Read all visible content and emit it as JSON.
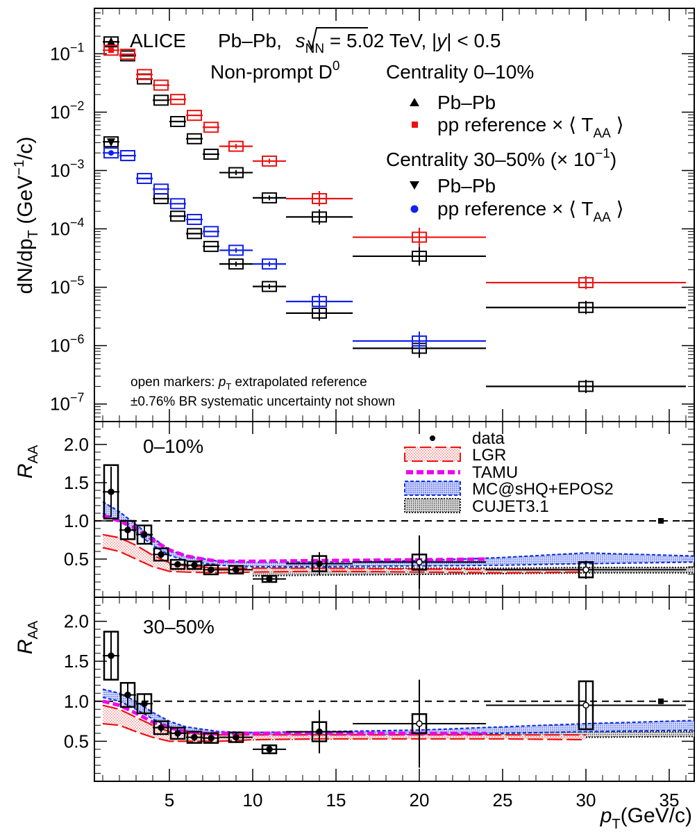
{
  "colors": {
    "central_pbpb": "#000000",
    "central_pp": "#ee1111",
    "semi_pbpb": "#000000",
    "semi_pp": "#1122ee",
    "lgr": "#ee1111",
    "tamu": "#ee00ee",
    "mcshq": "#1133dd",
    "cujet": "#222222"
  },
  "header": {
    "alice": "ALICE",
    "system": "Pb–Pb, ",
    "sqrt_s": "s",
    "sqrt_sub": "NN",
    "energy": " = 5.02 TeV, |",
    "y_sym": "y",
    "rapidity": "| < 0.5",
    "species_a": "Non-prompt D",
    "species_sup": "0"
  },
  "legend_top": {
    "cent1_title": "Centrality 0–10%",
    "cent1_pbpb": "Pb–Pb",
    "cent1_pp": "pp reference × ⟨ T",
    "cent1_pp_sub": "AA",
    "cent1_pp_end": " ⟩",
    "cent2_title": "Centrality 30–50% (× 10",
    "cent2_title_sup": "−1",
    "cent2_title_end": ")",
    "cent2_pbpb": "Pb–Pb",
    "cent2_pp": "pp reference × ⟨ T",
    "cent2_pp_sub": "AA",
    "cent2_pp_end": " ⟩"
  },
  "notes": {
    "line1_a": "open markers: ",
    "line1_p": "p",
    "line1_sub": "T",
    "line1_b": " extrapolated reference",
    "line2": "±0.76% BR systematic uncertainty not shown"
  },
  "top_ylabel": {
    "a": "dN/dp",
    "sub": "T",
    "b": " (GeV",
    "sup": "−1",
    "c": "/c)"
  },
  "raa_ylabel": {
    "main": "R",
    "sub": "AA"
  },
  "xlabel": {
    "main": "p",
    "sub": "T",
    "rest": "(GeV/c)"
  },
  "panel_mid": {
    "label": "0–10%"
  },
  "panel_bot": {
    "label": "30–50%"
  },
  "legend_raa": {
    "data": "data",
    "lgr": "LGR",
    "tamu": "TAMU",
    "mcshq": "MC@sHQ+EPOS2",
    "cujet": "CUJET3.1"
  },
  "chart_data": [
    {
      "type": "scatter",
      "panel": "spectra",
      "y_scale": "log",
      "xlim": [
        0.5,
        36.5
      ],
      "ylim": [
        5e-08,
        0.6
      ],
      "y_ticks": [
        "10^{-1}",
        "10^{-2}",
        "10^{-3}",
        "10^{-4}",
        "10^{-5}",
        "10^{-6}",
        "10^{-7}"
      ],
      "x_bin_edges": [
        1,
        2,
        3,
        4,
        5,
        6,
        7,
        8,
        10,
        12,
        16,
        24,
        36
      ],
      "x_centers": [
        1.5,
        2.5,
        3.5,
        4.5,
        5.5,
        6.5,
        7.5,
        9,
        11,
        14,
        20,
        30
      ],
      "series": [
        {
          "name": "Centrality 0–10% Pb–Pb",
          "marker": "triangle-up",
          "values": [
            0.16,
            0.092,
            0.037,
            0.016,
            0.0069,
            0.0035,
            0.0019,
            0.00092,
            0.00034,
            0.00016,
            3.4e-05,
            4.5e-06
          ]
        },
        {
          "name": "Centrality 0–10% pp reference × ⟨TAA⟩",
          "marker": "square",
          "values": [
            0.115,
            0.098,
            0.044,
            0.029,
            0.0165,
            0.0088,
            0.0055,
            0.0026,
            0.00145,
            0.00033,
            7.2e-05,
            1.2e-05
          ]
        },
        {
          "name": "Centrality 30–50% Pb–Pb",
          "marker": "triangle-down",
          "values": [
            0.0031,
            0.0018,
            0.00073,
            0.00033,
            0.000165,
            8.3e-05,
            5e-05,
            2.5e-05,
            1.03e-05,
            3.6e-06,
            9e-07,
            2e-07
          ]
        },
        {
          "name": "Centrality 30–50% pp reference × ⟨TAA⟩",
          "marker": "circle",
          "values": [
            0.002,
            0.0018,
            0.00073,
            0.00048,
            0.00027,
            0.000145,
            9e-05,
            4.3e-05,
            2.5e-05,
            5.7e-06,
            1.2e-06,
            null
          ]
        }
      ],
      "stat_err_rel": [
        0.08,
        0.08,
        0.08,
        0.06,
        0.06,
        0.06,
        0.08,
        0.1,
        0.1,
        0.35,
        0.45,
        0.3
      ]
    },
    {
      "type": "scatter",
      "panel": "raa_0_10",
      "label": "0–10%",
      "xlim": [
        0.5,
        36.5
      ],
      "ylim": [
        0,
        2.3
      ],
      "y_ticks": [
        0.5,
        1.0,
        1.5,
        2.0
      ],
      "x_ticks": [
        5,
        10,
        15,
        20,
        25,
        30,
        35
      ],
      "data": {
        "x": [
          1.5,
          2.5,
          3.5,
          4.5,
          5.5,
          6.5,
          7.5,
          9,
          11,
          14,
          20,
          30
        ],
        "xerr": [
          0.5,
          0.5,
          0.5,
          0.5,
          0.5,
          0.5,
          0.5,
          1,
          1,
          2,
          4,
          6
        ],
        "y": [
          1.38,
          0.88,
          0.82,
          0.56,
          0.43,
          0.42,
          0.36,
          0.36,
          0.24,
          0.44,
          0.46,
          0.36
        ],
        "stat": [
          0.33,
          0.12,
          0.12,
          0.05,
          0.04,
          0.04,
          0.04,
          0.04,
          0.03,
          0.15,
          0.35,
          0.12
        ],
        "syst": [
          0.35,
          0.12,
          0.12,
          0.08,
          0.06,
          0.05,
          0.06,
          0.05,
          0.04,
          0.1,
          0.1,
          0.1
        ]
      },
      "models": {
        "lgr_band": {
          "x": [
            1,
            2,
            3,
            4,
            5,
            6,
            8,
            10,
            14,
            20,
            25,
            30
          ],
          "lo": [
            0.65,
            0.6,
            0.5,
            0.4,
            0.34,
            0.33,
            0.32,
            0.33,
            0.34,
            0.33,
            0.32,
            0.33
          ],
          "hi": [
            0.82,
            0.78,
            0.68,
            0.55,
            0.45,
            0.41,
            0.38,
            0.38,
            0.38,
            0.37,
            0.36,
            0.36
          ]
        },
        "tamu": {
          "x": [
            1,
            2,
            3,
            4,
            5,
            6,
            7,
            8,
            10,
            14,
            20,
            24
          ],
          "y": [
            1.07,
            1.0,
            0.9,
            0.75,
            0.62,
            0.54,
            0.5,
            0.47,
            0.47,
            0.48,
            0.49,
            0.5
          ]
        },
        "mcshq_band": {
          "x": [
            1,
            2,
            3,
            4,
            5,
            6,
            8,
            10,
            14,
            20,
            25,
            30,
            36.5
          ],
          "lo": [
            1.1,
            1.0,
            0.85,
            0.68,
            0.55,
            0.48,
            0.42,
            0.4,
            0.4,
            0.41,
            0.42,
            0.44,
            0.46
          ],
          "hi": [
            1.25,
            1.12,
            0.95,
            0.78,
            0.62,
            0.54,
            0.47,
            0.46,
            0.46,
            0.48,
            0.52,
            0.58,
            0.54
          ]
        },
        "cujet_band": {
          "x": [
            10,
            14,
            20,
            25,
            30,
            36.5
          ],
          "lo": [
            0.28,
            0.29,
            0.3,
            0.31,
            0.32,
            0.32
          ],
          "hi": [
            0.38,
            0.38,
            0.38,
            0.38,
            0.39,
            0.39
          ]
        }
      }
    },
    {
      "type": "scatter",
      "panel": "raa_30_50",
      "label": "30–50%",
      "xlim": [
        0.5,
        36.5
      ],
      "ylim": [
        0,
        2.3
      ],
      "y_ticks": [
        0.5,
        1.0,
        1.5,
        2.0
      ],
      "x_ticks": [
        5,
        10,
        15,
        20,
        25,
        30,
        35
      ],
      "data": {
        "x": [
          1.5,
          2.5,
          3.5,
          4.5,
          5.5,
          6.5,
          7.5,
          9,
          11,
          14,
          20,
          30
        ],
        "xerr": [
          0.5,
          0.5,
          0.5,
          0.5,
          0.5,
          0.5,
          0.5,
          1,
          1,
          2,
          4,
          6
        ],
        "y": [
          1.57,
          1.08,
          0.97,
          0.67,
          0.6,
          0.55,
          0.54,
          0.55,
          0.4,
          0.62,
          0.72,
          0.95
        ],
        "stat": [
          0.3,
          0.15,
          0.12,
          0.06,
          0.06,
          0.05,
          0.05,
          0.07,
          0.06,
          0.27,
          0.55,
          0.3
        ],
        "syst": [
          0.3,
          0.15,
          0.12,
          0.08,
          0.07,
          0.07,
          0.06,
          0.06,
          0.05,
          0.12,
          0.12,
          0.3
        ]
      },
      "models": {
        "lgr_band": {
          "x": [
            1,
            2,
            3,
            4,
            5,
            6,
            8,
            10,
            14,
            20,
            25,
            30
          ],
          "lo": [
            0.72,
            0.7,
            0.62,
            0.55,
            0.5,
            0.5,
            0.5,
            0.52,
            0.53,
            0.53,
            0.53,
            0.52
          ],
          "hi": [
            0.95,
            0.9,
            0.8,
            0.7,
            0.62,
            0.6,
            0.58,
            0.58,
            0.58,
            0.58,
            0.58,
            0.58
          ]
        },
        "tamu": {
          "x": [
            1,
            2,
            3,
            4,
            5,
            6,
            7,
            8,
            10,
            14,
            20,
            24
          ],
          "y": [
            1.0,
            0.95,
            0.85,
            0.74,
            0.67,
            0.62,
            0.6,
            0.6,
            0.6,
            0.6,
            0.6,
            0.6
          ]
        },
        "mcshq_band": {
          "x": [
            1,
            2,
            3,
            4,
            5,
            6,
            8,
            10,
            14,
            20,
            25,
            30,
            36.5
          ],
          "lo": [
            1.05,
            1.0,
            0.9,
            0.78,
            0.68,
            0.62,
            0.57,
            0.56,
            0.57,
            0.58,
            0.6,
            0.62,
            0.64
          ],
          "hi": [
            1.15,
            1.1,
            1.0,
            0.86,
            0.75,
            0.68,
            0.62,
            0.61,
            0.62,
            0.64,
            0.68,
            0.72,
            0.76
          ]
        },
        "cujet_band": {
          "x": [
            10,
            14,
            20,
            25,
            30,
            36.5
          ],
          "lo": [
            0.52,
            0.53,
            0.54,
            0.55,
            0.55,
            0.56
          ],
          "hi": [
            0.6,
            0.6,
            0.6,
            0.61,
            0.62,
            0.62
          ]
        }
      }
    }
  ]
}
